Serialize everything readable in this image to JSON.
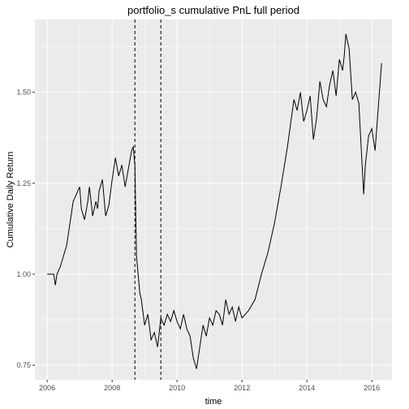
{
  "chart_data": {
    "type": "line",
    "title": "portfolio_s cumulative PnL full period",
    "xlabel": "time",
    "ylabel": "Cumulative Daily Return",
    "xlim": [
      2005.62,
      2016.62
    ],
    "ylim": [
      0.71,
      1.7
    ],
    "x_ticks": [
      {
        "value": 2006,
        "label": "2006"
      },
      {
        "value": 2008,
        "label": "2008"
      },
      {
        "value": 2010,
        "label": "2010"
      },
      {
        "value": 2012,
        "label": "2012"
      },
      {
        "value": 2014,
        "label": "2014"
      },
      {
        "value": 2016,
        "label": "2016"
      }
    ],
    "y_ticks": [
      {
        "value": 0.75,
        "label": "0.75"
      },
      {
        "value": 1.0,
        "label": "1.00"
      },
      {
        "value": 1.25,
        "label": "1.25"
      },
      {
        "value": 1.5,
        "label": "1.50"
      }
    ],
    "grid": true,
    "background": "#ebebeb",
    "grid_color": "#ffffff",
    "line_color": "#000000",
    "vlines": [
      {
        "x": 2008.7,
        "style": "dashed"
      },
      {
        "x": 2009.5,
        "style": "dashed"
      }
    ],
    "series": [
      {
        "x": [
          2006.0,
          2006.2,
          2006.25,
          2006.3,
          2006.4,
          2006.5,
          2006.6,
          2006.7,
          2006.8,
          2006.9,
          2007.0,
          2007.05,
          2007.15,
          2007.25,
          2007.3,
          2007.4,
          2007.5,
          2007.55,
          2007.6,
          2007.7,
          2007.8,
          2007.9,
          2008.0,
          2008.1,
          2008.2,
          2008.3,
          2008.4,
          2008.5,
          2008.6,
          2008.65,
          2008.7,
          2008.75,
          2008.8,
          2008.85,
          2008.9,
          2009.0,
          2009.1,
          2009.2,
          2009.3,
          2009.4,
          2009.5,
          2009.6,
          2009.7,
          2009.8,
          2009.9,
          2010.0,
          2010.1,
          2010.2,
          2010.3,
          2010.4,
          2010.5,
          2010.6,
          2010.7,
          2010.8,
          2010.9,
          2011.0,
          2011.1,
          2011.2,
          2011.3,
          2011.4,
          2011.5,
          2011.6,
          2011.7,
          2011.8,
          2011.9,
          2012.0,
          2012.2,
          2012.4,
          2012.6,
          2012.8,
          2013.0,
          2013.2,
          2013.4,
          2013.6,
          2013.7,
          2013.8,
          2013.9,
          2014.0,
          2014.1,
          2014.2,
          2014.3,
          2014.4,
          2014.5,
          2014.6,
          2014.7,
          2014.8,
          2014.9,
          2015.0,
          2015.1,
          2015.15,
          2015.2,
          2015.3,
          2015.4,
          2015.5,
          2015.6,
          2015.7,
          2015.75,
          2015.8,
          2015.9,
          2016.0,
          2016.1,
          2016.2,
          2016.3
        ],
        "y": [
          1.0,
          1.0,
          0.97,
          1.0,
          1.02,
          1.05,
          1.08,
          1.14,
          1.2,
          1.22,
          1.24,
          1.18,
          1.15,
          1.2,
          1.24,
          1.16,
          1.2,
          1.18,
          1.23,
          1.26,
          1.16,
          1.19,
          1.26,
          1.32,
          1.27,
          1.3,
          1.24,
          1.29,
          1.34,
          1.35,
          1.3,
          1.05,
          1.0,
          0.95,
          0.93,
          0.86,
          0.89,
          0.82,
          0.84,
          0.8,
          0.88,
          0.86,
          0.89,
          0.87,
          0.9,
          0.87,
          0.85,
          0.89,
          0.85,
          0.83,
          0.77,
          0.74,
          0.8,
          0.86,
          0.83,
          0.88,
          0.86,
          0.9,
          0.89,
          0.86,
          0.93,
          0.89,
          0.91,
          0.87,
          0.91,
          0.88,
          0.9,
          0.93,
          1.0,
          1.06,
          1.14,
          1.24,
          1.35,
          1.48,
          1.45,
          1.5,
          1.42,
          1.45,
          1.49,
          1.37,
          1.43,
          1.53,
          1.48,
          1.46,
          1.52,
          1.56,
          1.49,
          1.59,
          1.56,
          1.6,
          1.66,
          1.62,
          1.48,
          1.5,
          1.47,
          1.3,
          1.22,
          1.3,
          1.38,
          1.4,
          1.34,
          1.46,
          1.58
        ]
      }
    ]
  }
}
